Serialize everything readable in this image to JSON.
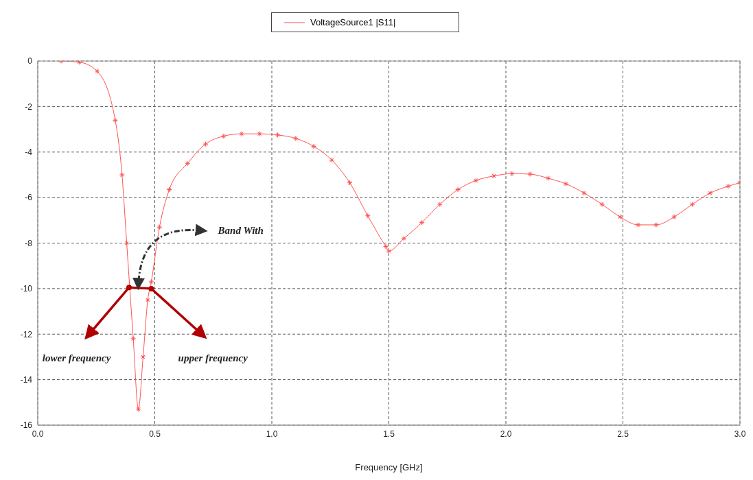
{
  "chart_data": {
    "type": "line",
    "xlabel": "Frequency [GHz]",
    "legend": "top",
    "grid": true,
    "marker": "cross",
    "line_style": "solid",
    "xlim": [
      0,
      3
    ],
    "xticks": [
      {
        "value": 0,
        "label": "0.0"
      },
      {
        "value": 0.5,
        "label": "0.5"
      },
      {
        "value": 1,
        "label": "1.0"
      },
      {
        "value": 1.5,
        "label": "1.5"
      },
      {
        "value": 2,
        "label": "2.0"
      },
      {
        "value": 2.5,
        "label": "2.5"
      },
      {
        "value": 3,
        "label": "3.0"
      }
    ],
    "ylim": [
      -16,
      0
    ],
    "yticks": [
      -16,
      -14,
      -12,
      -10,
      -8,
      -6,
      -4,
      -2,
      0
    ],
    "annotations": [
      "Band With",
      "lower frequency",
      "upper frequency"
    ],
    "series": [
      {
        "name": "VoltageSource1 |S11|",
        "color": "#ff5050",
        "x": [
          0.1,
          0.177,
          0.254,
          0.331,
          0.36,
          0.38,
          0.408,
          0.43,
          0.45,
          0.47,
          0.485,
          0.52,
          0.562,
          0.64,
          0.717,
          0.794,
          0.871,
          0.948,
          1.025,
          1.102,
          1.179,
          1.256,
          1.333,
          1.41,
          1.487,
          1.5,
          1.564,
          1.641,
          1.718,
          1.795,
          1.872,
          1.949,
          2.026,
          2.103,
          2.18,
          2.257,
          2.334,
          2.411,
          2.488,
          2.565,
          2.642,
          2.719,
          2.796,
          2.873,
          2.95,
          3.0
        ],
        "values": [
          0,
          -0.05,
          -0.45,
          -2.6,
          -5,
          -8,
          -12.2,
          -15.3,
          -13,
          -10.5,
          -9.7,
          -7.3,
          -5.65,
          -4.5,
          -3.65,
          -3.3,
          -3.2,
          -3.2,
          -3.25,
          -3.4,
          -3.75,
          -4.35,
          -5.35,
          -6.8,
          -8.15,
          -8.35,
          -7.8,
          -7.1,
          -6.3,
          -5.65,
          -5.25,
          -5.05,
          -4.95,
          -4.97,
          -5.15,
          -5.4,
          -5.8,
          -6.3,
          -6.85,
          -7.2,
          -7.2,
          -6.85,
          -6.3,
          -5.8,
          -5.5,
          -5.35
        ]
      }
    ]
  }
}
